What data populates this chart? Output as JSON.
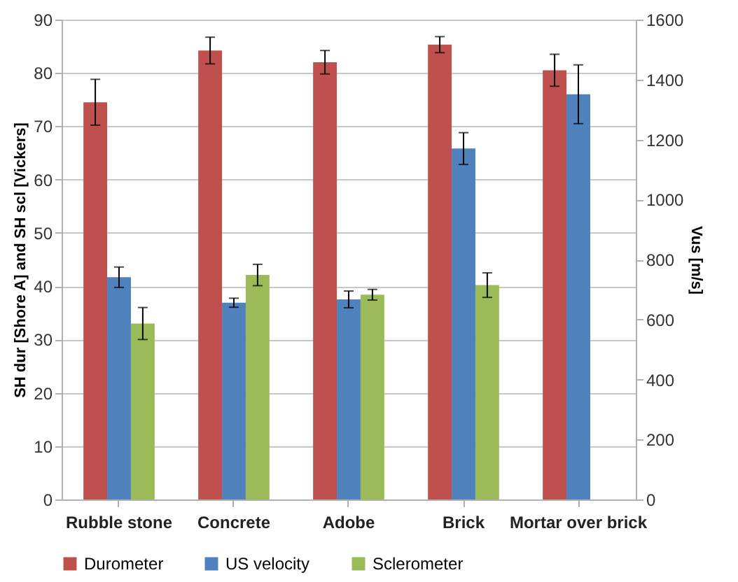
{
  "chart_data": {
    "type": "bar",
    "categories": [
      "Rubble stone",
      "Concrete",
      "Adobe",
      "Brick",
      "Mortar over brick"
    ],
    "ylabel": "SH dur [Shore A] and SH scl [Vickers]",
    "y2label": "Vus [m/s]",
    "ylim": [
      0,
      90
    ],
    "yticks": [
      0,
      10,
      20,
      30,
      40,
      50,
      60,
      70,
      80,
      90
    ],
    "y2lim": [
      0,
      1600
    ],
    "y2ticks": [
      0,
      200,
      400,
      600,
      800,
      1000,
      1200,
      1400,
      1600
    ],
    "grid": "y",
    "legend": "bottom",
    "series": [
      {
        "name": "Durometer",
        "color": "#c0504d",
        "values": [
          74.5,
          84.2,
          82,
          85.3,
          80.5
        ],
        "errors": [
          4.3,
          2.5,
          2.2,
          1.5,
          3
        ]
      },
      {
        "name": "US velocity",
        "color": "#4f81bd",
        "axis": "y2",
        "values": [
          741,
          656,
          667,
          1170,
          1351
        ],
        "errors": [
          34,
          15,
          28,
          53,
          98
        ]
      },
      {
        "name": "Sclerometer",
        "color": "#9bbb59",
        "values": [
          33,
          42.1,
          38.4,
          40.2,
          null
        ],
        "errors": [
          3,
          2,
          1,
          2.3,
          null
        ]
      }
    ]
  }
}
